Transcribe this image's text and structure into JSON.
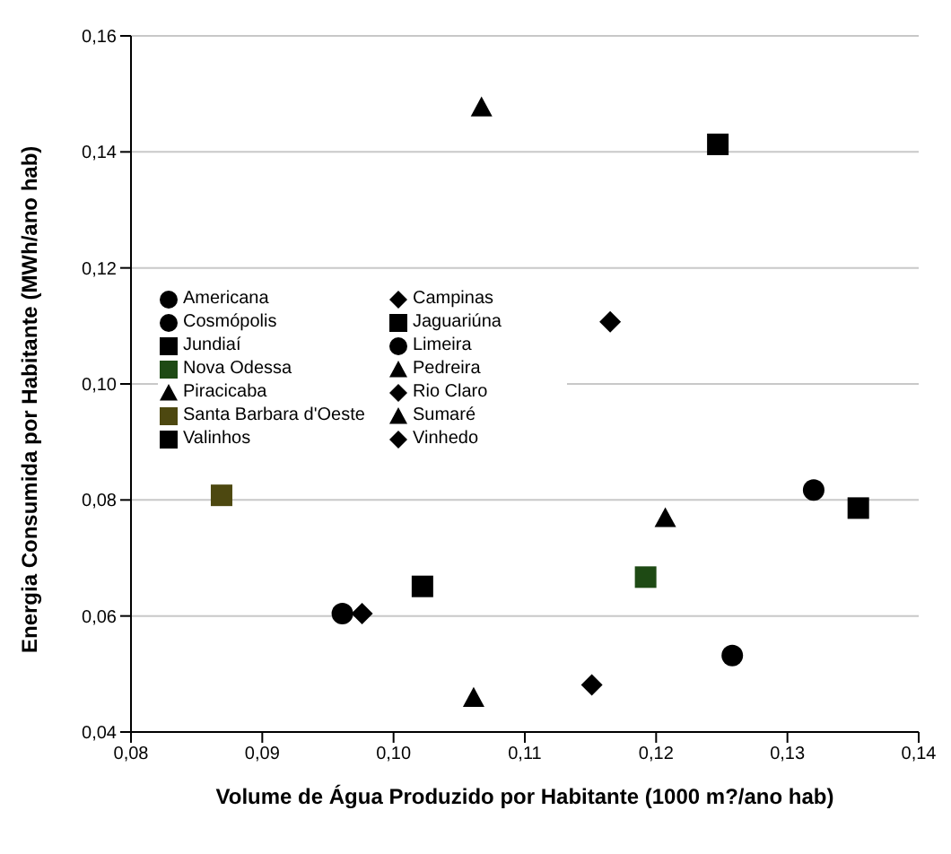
{
  "chart_data": {
    "type": "scatter",
    "xlabel": "Volume de Água Produzido por Habitante (1000 m?/ano hab)",
    "ylabel": "Energia Consumida por Habitante (MWh/ano hab)",
    "xlim": [
      0.08,
      0.14
    ],
    "xticks": [
      {
        "value": 0.08,
        "label": "0,08"
      },
      {
        "value": 0.09,
        "label": "0,09"
      },
      {
        "value": 0.1,
        "label": "0,10"
      },
      {
        "value": 0.11,
        "label": "0,11"
      },
      {
        "value": 0.12,
        "label": "0,12"
      },
      {
        "value": 0.13,
        "label": "0,13"
      },
      {
        "value": 0.14,
        "label": "0,14"
      }
    ],
    "ylim": [
      0.04,
      0.16
    ],
    "yticks": [
      {
        "value": 0.04,
        "label": "0,04"
      },
      {
        "value": 0.06,
        "label": "0,06"
      },
      {
        "value": 0.08,
        "label": "0,08"
      },
      {
        "value": 0.1,
        "label": "0,10"
      },
      {
        "value": 0.12,
        "label": "0,12"
      },
      {
        "value": 0.14,
        "label": "0,14"
      },
      {
        "value": 0.16,
        "label": "0,16"
      }
    ],
    "grid": "y",
    "legend": "left",
    "series": [
      {
        "name": "Americana",
        "color": "#000000",
        "marker": "circle",
        "x": [
          0.0961
        ],
        "values": [
          0.0604
        ]
      },
      {
        "name": "Campinas",
        "color": "#000000",
        "marker": "diamond",
        "x": [
          0.1165
        ],
        "values": [
          0.1107
        ]
      },
      {
        "name": "Cosmópolis",
        "color": "#000000",
        "marker": "circle",
        "x": [
          0.132
        ],
        "values": [
          0.0817
        ]
      },
      {
        "name": "Jaguariúna",
        "color": "#000000",
        "marker": "square",
        "x": [
          0.1247
        ],
        "values": [
          0.1413
        ]
      },
      {
        "name": "Jundiaí",
        "color": "#000000",
        "marker": "square",
        "x": [
          0.1354
        ],
        "values": [
          0.0786
        ]
      },
      {
        "name": "Limeira",
        "color": "#000000",
        "marker": "circle",
        "x": [
          0.1258
        ],
        "values": [
          0.0532
        ]
      },
      {
        "name": "Nova Odessa",
        "color": "#1e4a14",
        "marker": "square",
        "x": [
          0.1192
        ],
        "values": [
          0.0667
        ]
      },
      {
        "name": "Pedreira",
        "color": "#000000",
        "marker": "triangle",
        "x": [
          0.1067
        ],
        "values": [
          0.1477
        ]
      },
      {
        "name": "Piracicaba",
        "color": "#000000",
        "marker": "triangle",
        "x": [
          0.1061
        ],
        "values": [
          0.0459
        ]
      },
      {
        "name": "Rio Claro",
        "color": "#000000",
        "marker": "diamond",
        "x": [
          0.1151
        ],
        "values": [
          0.0481
        ]
      },
      {
        "name": "Santa Barbara d'Oeste",
        "color": "#4d4810",
        "marker": "square",
        "x": [
          0.0869
        ],
        "values": [
          0.0808
        ]
      },
      {
        "name": "Sumaré",
        "color": "#000000",
        "marker": "triangle",
        "x": [
          0.1207
        ],
        "values": [
          0.0769
        ]
      },
      {
        "name": "Valinhos",
        "color": "#000000",
        "marker": "square",
        "x": [
          0.1022
        ],
        "values": [
          0.0651
        ]
      },
      {
        "name": "Vinhedo",
        "color": "#000000",
        "marker": "diamond",
        "x": [
          0.0976
        ],
        "values": [
          0.0604
        ]
      }
    ]
  }
}
